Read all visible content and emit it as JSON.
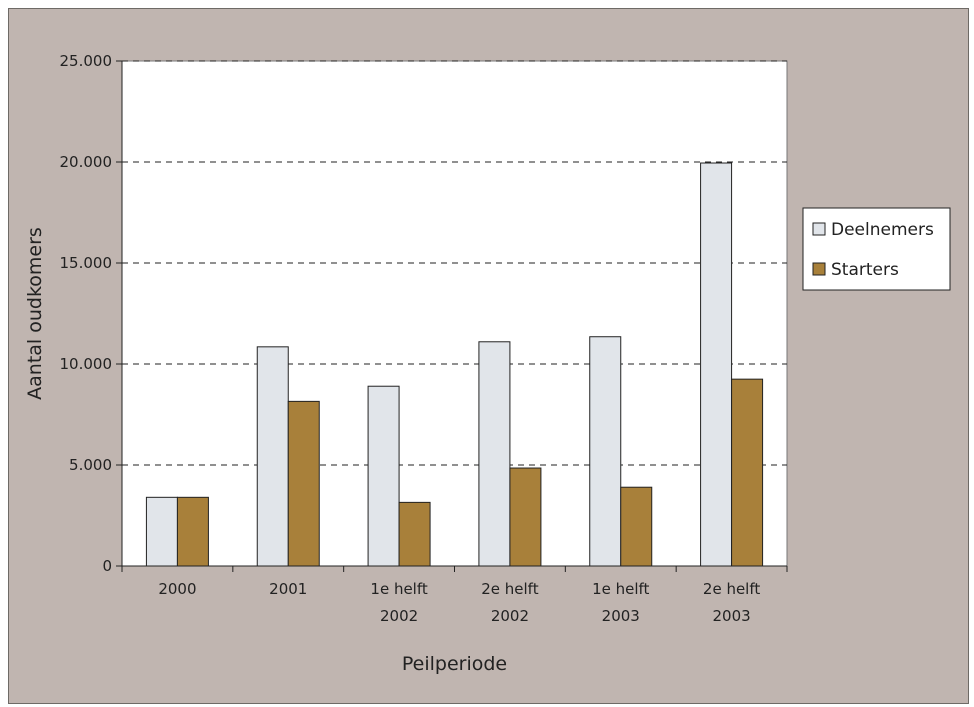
{
  "chart_data": {
    "type": "bar",
    "title": "",
    "xlabel": "Peilperiode",
    "ylabel": "Aantal oudkomers",
    "categories": [
      [
        "2000"
      ],
      [
        "2001"
      ],
      [
        "1e helft",
        "2002"
      ],
      [
        "2e helft",
        "2002"
      ],
      [
        "1e helft",
        "2003"
      ],
      [
        "2e helft",
        "2003"
      ]
    ],
    "series": [
      {
        "name": "Deelnemers",
        "values": [
          3400,
          10850,
          8900,
          11100,
          11350,
          19950
        ]
      },
      {
        "name": "Starters",
        "values": [
          3400,
          8150,
          3150,
          4850,
          3900,
          9250
        ]
      }
    ],
    "ylim": [
      0,
      25000
    ],
    "yticks": [
      0,
      5000,
      10000,
      15000,
      20000,
      25000
    ],
    "ytick_labels": [
      "0",
      "5.000",
      "10.000",
      "15.000",
      "20.000",
      "25.000"
    ],
    "grid": "horizontal dashed",
    "legend_position": "right",
    "colors": {
      "background": "#c0b5b0",
      "plot_area": "#ffffff",
      "Deelnemers": "#e1e5ea",
      "Starters": "#a8803a",
      "bar_stroke": "#222222",
      "gridline": "#222222"
    }
  }
}
